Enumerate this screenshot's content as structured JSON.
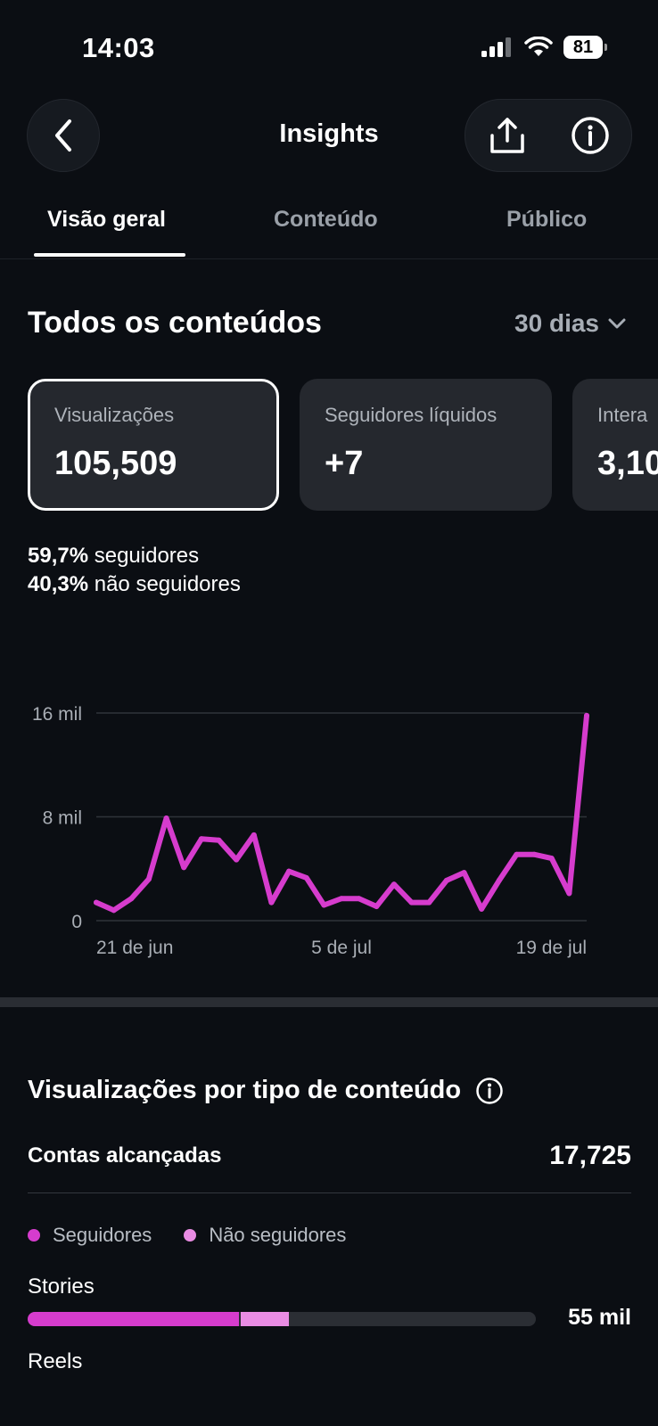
{
  "status_bar": {
    "time": "14:03",
    "battery": "81"
  },
  "header": {
    "title": "Insights"
  },
  "tabs": [
    {
      "label": "Visão geral",
      "active": true
    },
    {
      "label": "Conteúdo",
      "active": false
    },
    {
      "label": "Público",
      "active": false
    }
  ],
  "overview": {
    "title": "Todos os conteúdos",
    "range": "30 dias",
    "cards": [
      {
        "label": "Visualizações",
        "value": "105,509",
        "selected": true
      },
      {
        "label": "Seguidores líquidos",
        "value": "+7",
        "selected": false
      },
      {
        "label": "Intera",
        "value": "3,10",
        "selected": false
      }
    ],
    "breakdown": [
      {
        "pct": "59,7%",
        "label": "seguidores"
      },
      {
        "pct": "40,3%",
        "label": "não seguidores"
      }
    ]
  },
  "chart_data": {
    "type": "line",
    "y_ticks": [
      "16 mil",
      "8 mil",
      "0"
    ],
    "x_ticks": [
      "21 de jun",
      "5 de jul",
      "19 de jul"
    ],
    "ylim": [
      0,
      16000
    ],
    "grid": true,
    "color": "#d63ccd",
    "values": [
      1400,
      800,
      1700,
      3200,
      7900,
      4100,
      6300,
      6200,
      4700,
      6600,
      1400,
      3800,
      3300,
      1200,
      1700,
      1700,
      1100,
      2800,
      1400,
      1400,
      3100,
      3700,
      900,
      3100,
      5100,
      5100,
      4800,
      2100,
      15800
    ]
  },
  "content_type": {
    "title": "Visualizações por tipo de conteúdo",
    "reach_label": "Contas alcançadas",
    "reach_value": "17,725",
    "legend": [
      {
        "label": "Seguidores",
        "color": "#d63ccd"
      },
      {
        "label": "Não seguidores",
        "color": "#e98ce3"
      }
    ],
    "rows": [
      {
        "label": "Stories",
        "value": "55 mil",
        "followers_fraction": 0.415,
        "non_followers_fraction": 0.095
      },
      {
        "label": "Reels"
      }
    ]
  }
}
